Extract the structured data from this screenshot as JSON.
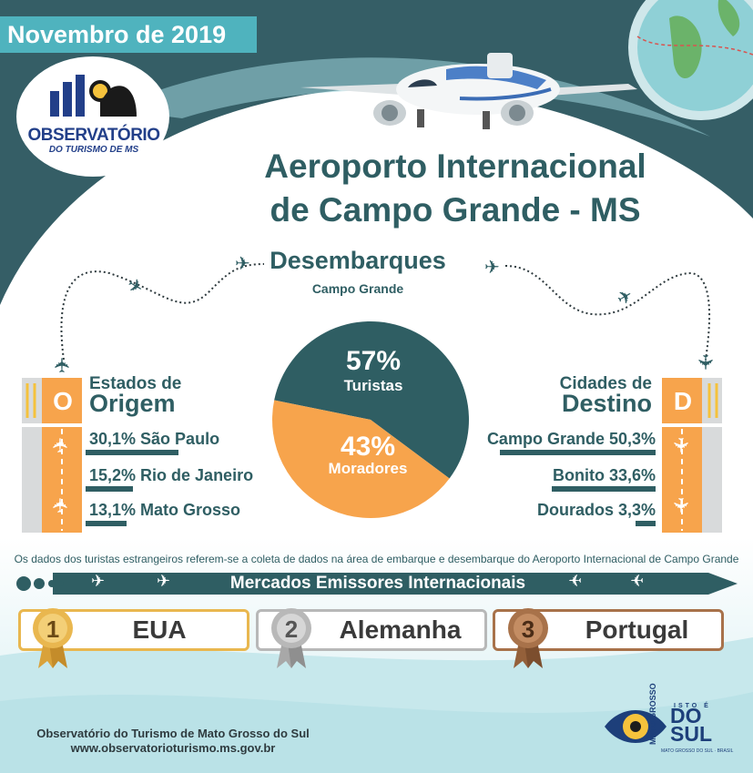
{
  "date": "Novembro de 2019",
  "logo": {
    "title": "OBSERVATÓRIO",
    "subtitle": "DO TURISMO DE MS",
    "icon": "binoculars-chart-icon"
  },
  "title_line1": "Aeroporto Internacional",
  "title_line2": "de Campo Grande - MS",
  "section": {
    "title": "Desembarques",
    "subtitle": "Campo Grande"
  },
  "pie": {
    "turistas_pct": "57%",
    "turistas_label": "Turistas",
    "moradores_pct": "43%",
    "moradores_label": "Moradores"
  },
  "chart_data": {
    "type": "pie",
    "categories": [
      "Turistas",
      "Moradores"
    ],
    "values": [
      57,
      43
    ],
    "colors": [
      "#2f5e63",
      "#f7a44c"
    ]
  },
  "origin": {
    "letter": "O",
    "title_line1": "Estados de",
    "title_line2": "Origem",
    "items": [
      {
        "label": "30,1% São Paulo",
        "value": 30.1
      },
      {
        "label": "15,2% Rio de Janeiro",
        "value": 15.2
      },
      {
        "label": "13,1% Mato Grosso",
        "value": 13.1
      }
    ]
  },
  "destination": {
    "letter": "D",
    "title_line1": "Cidades de",
    "title_line2": "Destino",
    "items": [
      {
        "label": "Campo Grande 50,3%",
        "value": 50.3
      },
      {
        "label": "Bonito 33,6%",
        "value": 33.6
      },
      {
        "label": "Dourados 3,3%",
        "value": 3.3
      }
    ]
  },
  "note": "Os dados dos turistas estrangeiros referem-se a coleta de dados na área de embarque e desembarque do Aeroporto Internacional de Campo Grande",
  "markets": {
    "title": "Mercados Emissores Internacionais",
    "ranking": [
      {
        "rank": "1",
        "country": "EUA",
        "medal": "gold-medal-icon"
      },
      {
        "rank": "2",
        "country": "Alemanha",
        "medal": "silver-medal-icon"
      },
      {
        "rank": "3",
        "country": "Portugal",
        "medal": "bronze-medal-icon"
      }
    ]
  },
  "footer": {
    "line1": "Observatório do Turismo de Mato Grosso do Sul",
    "line2": "www.observatorioturismo.ms.gov.br"
  },
  "brand": {
    "small_top": "ISTO É",
    "vertical": "MATO GROSSO",
    "big": "DO SUL",
    "tagline": "MATO GROSSO DO SUL · BRASIL"
  },
  "colors": {
    "teal_dark": "#2f5e63",
    "teal_light": "#4fb3be",
    "orange": "#f7a44c",
    "gold": "#e9b74f",
    "silver": "#b8b8b8",
    "bronze": "#a8724a"
  }
}
